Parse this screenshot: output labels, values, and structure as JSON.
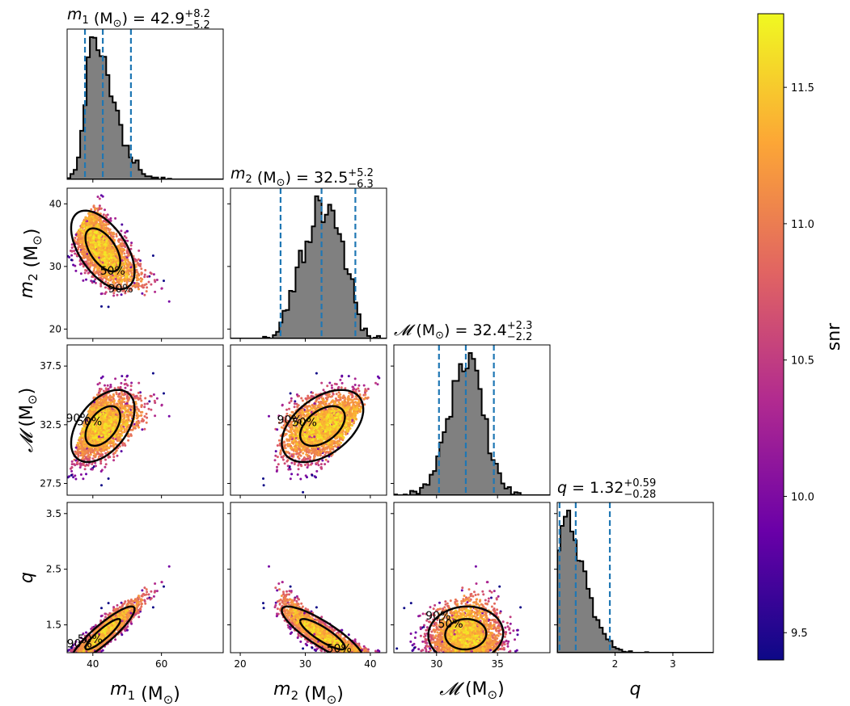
{
  "chart_data": {
    "type": "corner-plot",
    "colorbar": {
      "label": "snr",
      "range": [
        9.4,
        11.77
      ],
      "ticks": [
        "9.5",
        "10.0",
        "10.5",
        "11.0",
        "11.5"
      ],
      "tick_values": [
        9.5,
        10.0,
        10.5,
        11.0,
        11.5
      ],
      "colormap": [
        "#0d0887",
        "#6a00a8",
        "#b12a90",
        "#e16462",
        "#fca636",
        "#f0f921"
      ]
    },
    "parameters": [
      {
        "key": "m1",
        "label_italic": "m",
        "label_sub": "1",
        "unit": "(M",
        "unit_sub": "⊙",
        "unit_end": ")",
        "title_value": "42.9",
        "title_plus": "+8.2",
        "title_minus": "−5.2",
        "range": [
          32.5,
          78
        ],
        "ticks": [
          "40",
          "60"
        ],
        "tick_values": [
          40,
          60
        ],
        "hist_center": 42,
        "hist_sigma": 4.6,
        "hist_skew": 2.2,
        "quantiles": [
          37.7,
          42.9,
          51.1
        ]
      },
      {
        "key": "m2",
        "label_italic": "m",
        "label_sub": "2",
        "unit": "(M",
        "unit_sub": "⊙",
        "unit_end": ")",
        "title_value": "32.5",
        "title_plus": "+5.2",
        "title_minus": "−6.3",
        "range": [
          18.5,
          42.5
        ],
        "ticks": [
          "20",
          "30",
          "40"
        ],
        "tick_values": [
          20,
          30,
          40
        ],
        "hist_center": 32.2,
        "hist_sigma": 3.6,
        "hist_skew": 0.8,
        "quantiles": [
          26.2,
          32.5,
          37.7
        ]
      },
      {
        "key": "Mc",
        "label_italic": "𝓜",
        "label_sub": "",
        "unit": "(M",
        "unit_sub": "⊙",
        "unit_end": ")",
        "title_value": "32.4",
        "title_plus": "+2.3",
        "title_minus": "−2.2",
        "range": [
          26.5,
          39.3
        ],
        "ticks": [
          "30",
          "35"
        ],
        "tick_values": [
          30,
          35
        ],
        "hist_center": 32.4,
        "hist_sigma": 1.35,
        "hist_skew": 1.0,
        "quantiles": [
          30.2,
          32.4,
          34.7
        ]
      },
      {
        "key": "q",
        "label_italic": "q",
        "label_sub": "",
        "unit": "",
        "unit_sub": "",
        "unit_end": "",
        "title_value": "1.32",
        "title_plus": "+0.59",
        "title_minus": "−0.28",
        "range": [
          1.0,
          3.7
        ],
        "ticks": [
          "2",
          "3"
        ],
        "tick_values": [
          2,
          3
        ],
        "hist_center": 1.2,
        "hist_sigma": 0.28,
        "hist_skew": 2.6,
        "quantiles": [
          1.04,
          1.32,
          1.91
        ]
      }
    ],
    "row_ticks": {
      "m2": {
        "labels": [
          "20",
          "30",
          "40"
        ],
        "values": [
          20,
          30,
          40
        ]
      },
      "Mc": {
        "labels": [
          "27.5",
          "32.5",
          "37.5"
        ],
        "values": [
          27.5,
          32.5,
          37.5
        ]
      },
      "q": {
        "labels": [
          "1.5",
          "2.5",
          "3.5"
        ],
        "values": [
          1.5,
          2.5,
          3.5
        ]
      }
    },
    "scatter_points_per_panel": 2500,
    "contour_levels": [
      "50%",
      "90%"
    ],
    "quantile_line_color": "#1f77b4",
    "hist_fill": "#808080"
  }
}
